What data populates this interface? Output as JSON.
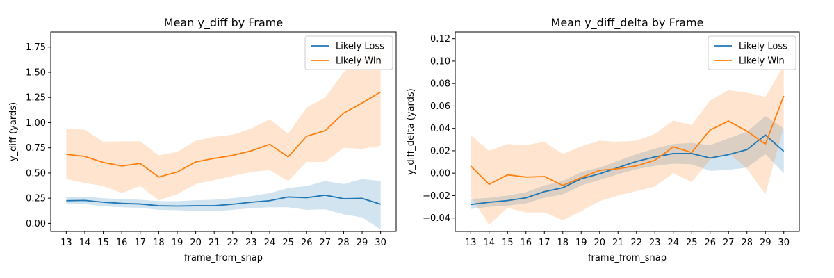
{
  "colors": {
    "loss": "#1f77b4",
    "win": "#ff7f0e"
  },
  "chart_data": [
    {
      "type": "line",
      "title": "Mean y_diff by Frame",
      "xlabel": "frame_from_snap",
      "ylabel": "y_diff (yards)",
      "x": [
        13,
        14,
        15,
        16,
        17,
        18,
        19,
        20,
        21,
        22,
        23,
        24,
        25,
        26,
        27,
        28,
        29,
        30
      ],
      "ylim": [
        -0.08,
        1.9
      ],
      "yticks": [
        0.0,
        0.25,
        0.5,
        0.75,
        1.0,
        1.25,
        1.5,
        1.75
      ],
      "ytick_labels": [
        "0.00",
        "0.25",
        "0.50",
        "0.75",
        "1.00",
        "1.25",
        "1.50",
        "1.75"
      ],
      "legend_position": "upper right",
      "series": [
        {
          "name": "Likely Loss",
          "color_key": "loss",
          "values": [
            0.225,
            0.228,
            0.21,
            0.198,
            0.192,
            0.175,
            0.172,
            0.175,
            0.175,
            0.19,
            0.21,
            0.225,
            0.262,
            0.255,
            0.28,
            0.245,
            0.248,
            0.19
          ],
          "lower": [
            0.19,
            0.19,
            0.17,
            0.16,
            0.155,
            0.135,
            0.13,
            0.125,
            0.12,
            0.135,
            0.15,
            0.16,
            0.16,
            0.135,
            0.14,
            0.09,
            0.06,
            -0.06
          ],
          "upper": [
            0.265,
            0.265,
            0.25,
            0.24,
            0.235,
            0.22,
            0.22,
            0.23,
            0.235,
            0.25,
            0.27,
            0.3,
            0.35,
            0.37,
            0.42,
            0.39,
            0.44,
            0.42
          ]
        },
        {
          "name": "Likely Win",
          "color_key": "win",
          "values": [
            0.685,
            0.665,
            0.605,
            0.57,
            0.595,
            0.46,
            0.51,
            0.61,
            0.645,
            0.675,
            0.72,
            0.785,
            0.66,
            0.865,
            0.92,
            1.095,
            1.195,
            1.305
          ],
          "lower": [
            0.44,
            0.4,
            0.37,
            0.3,
            0.37,
            0.23,
            0.29,
            0.39,
            0.43,
            0.47,
            0.51,
            0.53,
            0.42,
            0.61,
            0.61,
            0.75,
            0.74,
            0.77
          ],
          "upper": [
            0.94,
            0.93,
            0.81,
            0.815,
            0.815,
            0.675,
            0.71,
            0.82,
            0.86,
            0.88,
            0.94,
            1.035,
            0.89,
            1.15,
            1.25,
            1.5,
            1.62,
            1.72
          ]
        }
      ]
    },
    {
      "type": "line",
      "title": "Mean y_diff_delta by Frame",
      "xlabel": "frame_from_snap",
      "ylabel": "y_diff_delta (yards)",
      "x": [
        13,
        14,
        15,
        16,
        17,
        18,
        19,
        20,
        21,
        22,
        23,
        24,
        25,
        26,
        27,
        28,
        29,
        30
      ],
      "ylim": [
        -0.052,
        0.126
      ],
      "yticks": [
        -0.04,
        -0.02,
        0.0,
        0.02,
        0.04,
        0.06,
        0.08,
        0.1,
        0.12
      ],
      "ytick_labels": [
        "−0.04",
        "−0.02",
        "0.00",
        "0.02",
        "0.04",
        "0.06",
        "0.08",
        "0.10",
        "0.12"
      ],
      "legend_position": "upper right",
      "series": [
        {
          "name": "Likely Loss",
          "color_key": "loss",
          "values": [
            -0.028,
            -0.026,
            -0.0245,
            -0.022,
            -0.0165,
            -0.013,
            -0.005,
            -0.0005,
            0.005,
            0.0105,
            0.0145,
            0.0175,
            0.0175,
            0.0135,
            0.0165,
            0.021,
            0.034,
            0.0195
          ],
          "lower": [
            -0.032,
            -0.03,
            -0.029,
            -0.027,
            -0.022,
            -0.019,
            -0.011,
            -0.006,
            -0.001,
            0.0035,
            0.0065,
            0.0085,
            0.008,
            0.002,
            0.003,
            0.005,
            0.017,
            0.0
          ],
          "upper": [
            -0.023,
            -0.022,
            -0.02,
            -0.017,
            -0.011,
            -0.007,
            0.001,
            0.005,
            0.011,
            0.017,
            0.022,
            0.026,
            0.027,
            0.025,
            0.031,
            0.037,
            0.051,
            0.04
          ]
        },
        {
          "name": "Likely Win",
          "color_key": "win",
          "values": [
            0.0065,
            -0.01,
            -0.0015,
            -0.0035,
            -0.003,
            -0.011,
            -0.004,
            0.0025,
            0.004,
            0.0065,
            0.0115,
            0.0235,
            0.0185,
            0.0385,
            0.0465,
            0.0375,
            0.026,
            0.069
          ],
          "lower": [
            -0.021,
            -0.046,
            -0.031,
            -0.035,
            -0.035,
            -0.042,
            -0.034,
            -0.025,
            -0.02,
            -0.016,
            -0.012,
            0.0,
            -0.008,
            0.012,
            0.018,
            0.004,
            -0.019,
            0.042
          ],
          "upper": [
            0.034,
            0.02,
            0.026,
            0.025,
            0.028,
            0.017,
            0.024,
            0.029,
            0.028,
            0.029,
            0.035,
            0.047,
            0.043,
            0.065,
            0.074,
            0.072,
            0.068,
            0.096
          ]
        }
      ]
    }
  ]
}
